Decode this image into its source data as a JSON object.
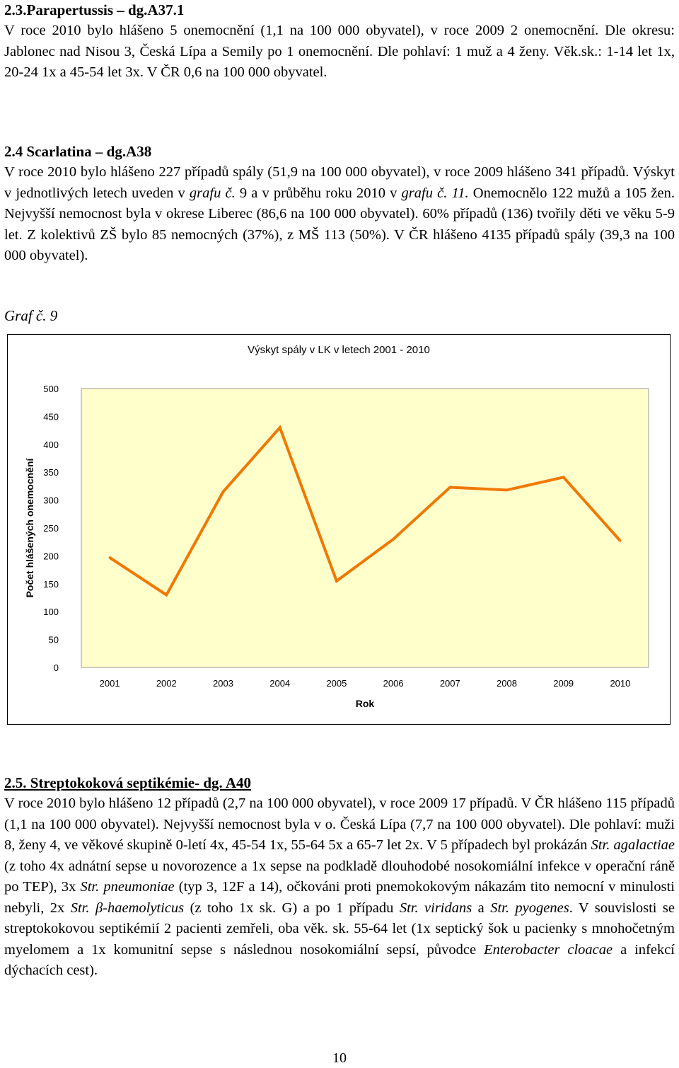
{
  "sections": {
    "parapertussis": {
      "heading": "2.3.Parapertussis – dg.A37.1",
      "text": "V roce 2010 bylo hlášeno 5 onemocnění (1,1 na 100 000 obyvatel), v roce 2009 2 onemocnění. Dle okresu: Jablonec nad Nisou 3, Česká Lípa a Semily po 1 onemocnění. Dle pohlaví: 1 muž a 4 ženy. Věk.sk.: 1-14 let 1x, 20-24 1x a 45-54 let 3x. V ČR 0,6 na 100 000 obyvatel."
    },
    "scarlatina": {
      "heading": "2.4 Scarlatina – dg.A38",
      "t1": "V roce 2010 bylo hlášeno 227 případů spály (51,9 na 100 000 obyvatel), v roce 2009 hlášeno 341 případů. Výskyt v jednotlivých letech uveden v ",
      "i1": "grafu č.",
      "t2": " 9 a v průběhu roku 2010 v ",
      "i2": "grafu č. 11.",
      "t3": " Onemocnělo 122 mužů a 105 žen. Nejvyšší nemocnost byla v okrese Liberec (86,6 na 100 000 obyvatel). 60% případů (136) tvořily děti ve věku 5-9 let. Z kolektivů ZŠ bylo 85 nemocných (37%), z MŠ 113 (50%). V ČR hlášeno 4135 případů spály (39,3 na 100 000 obyvatel)."
    },
    "streptokokova": {
      "heading": "2.5. Streptokoková septikémie- dg. A40",
      "t1": "V roce 2010 bylo hlášeno 12 případů (2,7 na 100 000 obyvatel), v roce 2009 17 případů. V ČR hlášeno 115 případů (1,1 na 100 000 obyvatel). Nejvyšší nemocnost byla v o. Česká Lípa (7,7 na 100 000 obyvatel). Dle pohlaví: muži 8, ženy 4, ve věkové skupině 0-letí 4x, 45-54 1x, 55-64 5x a 65-7 let 2x. V 5 případech byl prokázán ",
      "i1": "Str. agalactiae",
      "t2": " (z toho 4x adnátní sepse u novorozence a 1x sepse na podkladě dlouhodobé nosokomiální infekce v operační ráně po TEP), 3x ",
      "i2": "Str. pneumoniae",
      "t3": " (typ 3, 12F a 14), očkováni proti pnemokokovým nákazám tito nemocní v minulosti nebyli, 2x ",
      "i3": "Str. β-haemolyticus",
      "t4": " (z toho 1x sk. G) a po 1 případu ",
      "i4": "Str. viridans",
      "t5": " a ",
      "i5": "Str. pyogenes",
      "t6": ". V souvislosti se streptokokovou septikémií 2 pacienti zemřeli, oba věk. sk. 55-64 let (1x septický šok u pacienky s mnohočetným myelomem a 1x komunitní sepse s následnou nosokomiální sepsí, původce ",
      "i6": "Enterobacter cloacae",
      "t7": " a infekcí dýchacích cest)."
    }
  },
  "graph_caption": "Graf č. 9",
  "chart_data": {
    "type": "line",
    "title": "Výskyt spály v LK v letech 2001 - 2010",
    "xlabel": "Rok",
    "ylabel": "Počet hlášených onemocnění",
    "categories": [
      "2001",
      "2002",
      "2003",
      "2004",
      "2005",
      "2006",
      "2007",
      "2008",
      "2009",
      "2010"
    ],
    "series": [
      {
        "values": [
          197,
          130,
          315,
          430,
          155,
          230,
          323,
          318,
          341,
          227
        ]
      }
    ],
    "ylim": [
      0,
      500
    ],
    "yticks": [
      "0",
      "50",
      "100",
      "150",
      "200",
      "250",
      "300",
      "350",
      "400",
      "450",
      "500"
    ],
    "grid": false,
    "plot_background": "#ffffcc",
    "line_color": "#f07800"
  },
  "page_number": "10"
}
